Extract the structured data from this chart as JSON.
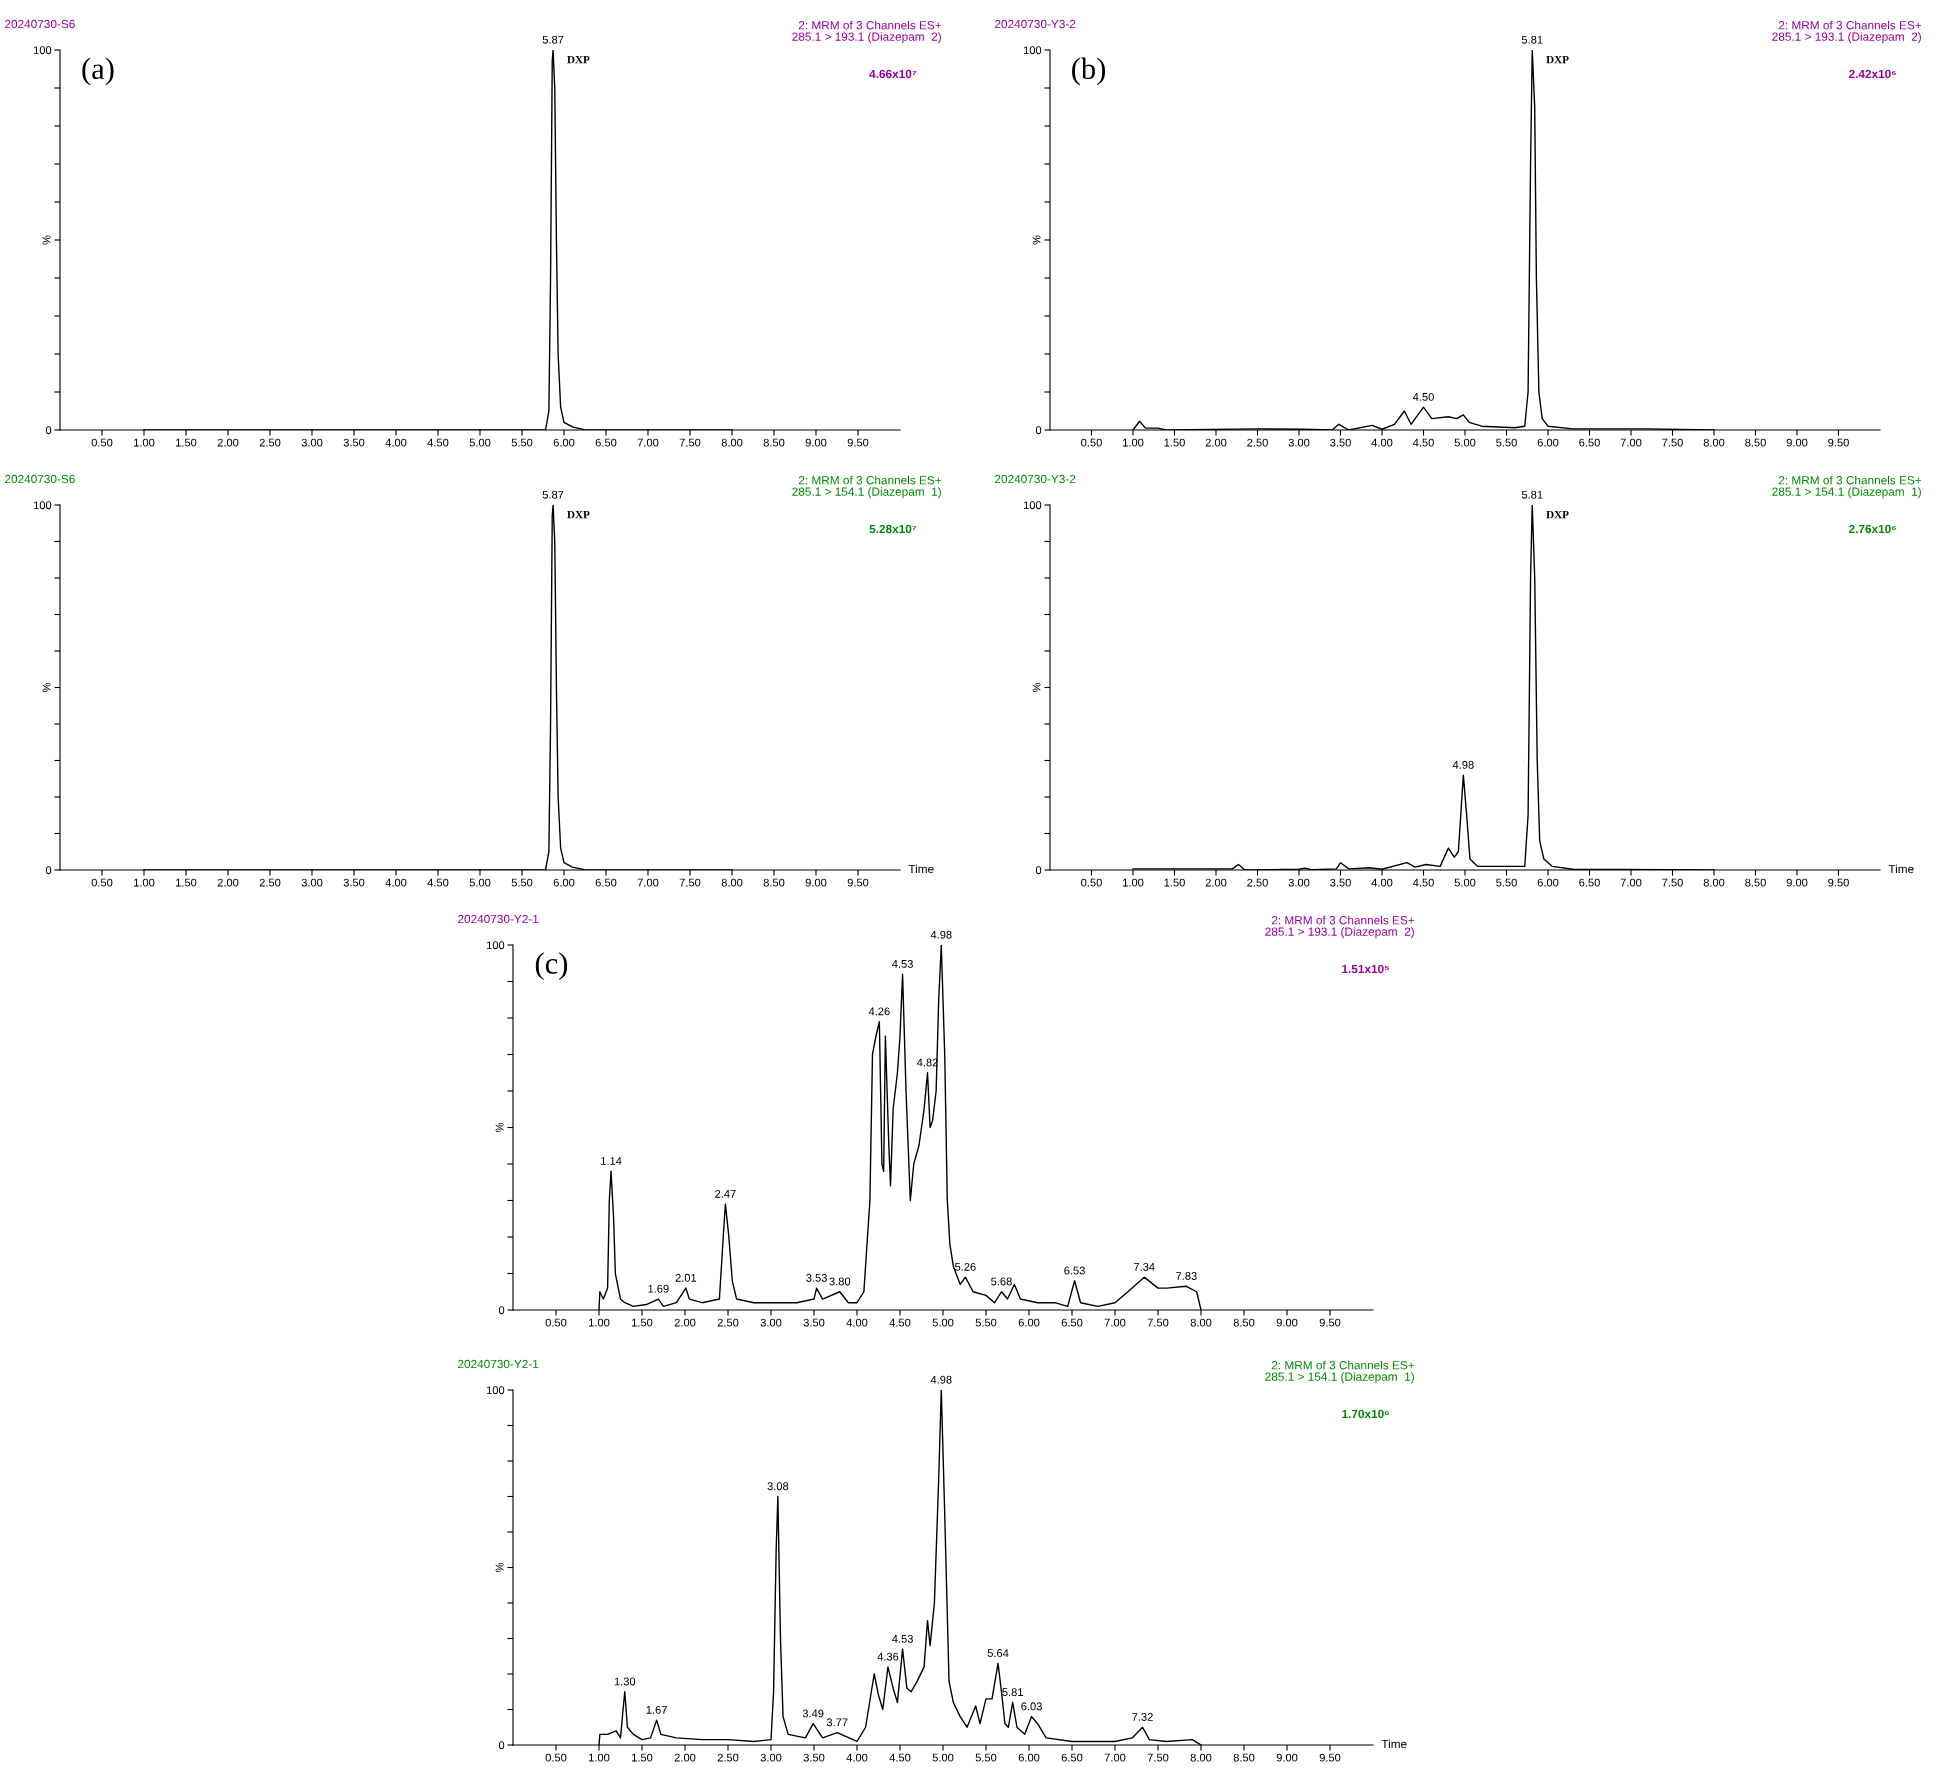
{
  "chart_data": [
    {
      "type": "line",
      "title": "20240730-S6",
      "subtitle": "2: MRM of 3 Channels ES+\n285.1 > 193.1 (Diazepam  2)",
      "x": [
        1.0,
        5.78,
        5.82,
        5.84,
        5.86,
        5.87,
        5.89,
        5.91,
        5.93,
        5.96,
        6.0,
        6.1,
        6.2,
        6.25,
        8.0
      ],
      "values": [
        0,
        0,
        5,
        40,
        97,
        100,
        90,
        50,
        20,
        6,
        2,
        0.8,
        0.3,
        0,
        0
      ],
      "color": "#000000",
      "xlim": [
        0,
        10
      ],
      "ylim": [
        0,
        100
      ],
      "xticks": [
        {
          "value": 0.5,
          "label": "0.50"
        },
        {
          "value": 1.0,
          "label": "1.00"
        },
        {
          "value": 1.5,
          "label": "1.50"
        },
        {
          "value": 2.0,
          "label": "2.00"
        },
        {
          "value": 2.5,
          "label": "2.50"
        },
        {
          "value": 3.0,
          "label": "3.00"
        },
        {
          "value": 3.5,
          "label": "3.50"
        },
        {
          "value": 4.0,
          "label": "4.00"
        },
        {
          "value": 4.5,
          "label": "4.50"
        },
        {
          "value": 5.0,
          "label": "5.00"
        },
        {
          "value": 5.5,
          "label": "5.50"
        },
        {
          "value": 6.0,
          "label": "6.00"
        },
        {
          "value": 6.5,
          "label": "6.50"
        },
        {
          "value": 7.0,
          "label": "7.00"
        },
        {
          "value": 7.5,
          "label": "7.50"
        },
        {
          "value": 8.0,
          "label": "8.00"
        },
        {
          "value": 8.5,
          "label": "8.50"
        },
        {
          "value": 9.0,
          "label": "9.00"
        },
        {
          "value": 9.5,
          "label": "9.50"
        }
      ],
      "yticks": [
        0,
        {
          "value": 10,
          "label": null
        },
        {
          "value": 20,
          "label": null
        },
        {
          "value": 30,
          "label": null
        },
        {
          "value": 40,
          "label": null
        },
        {
          "value": 50,
          "label": null
        },
        {
          "value": 60,
          "label": null
        },
        {
          "value": 70,
          "label": null
        },
        {
          "value": 80,
          "label": null
        },
        {
          "value": 90,
          "label": null
        },
        100
      ],
      "ylabel": "%",
      "annotations": [
        "4.66x10⁷",
        "(a)",
        {
          "text": "5.87",
          "x": 5.87,
          "y": 100
        },
        {
          "text": "DXP",
          "x": 5.87,
          "y": 100
        }
      ]
    },
    {
      "type": "line",
      "title": "20240730-Y3-2",
      "subtitle": "2: MRM of 3 Channels ES+\n285.1 > 193.1 (Diazepam  2)",
      "x": [
        1.0,
        1.08,
        1.15,
        1.3,
        1.4,
        2.5,
        3.05,
        3.4,
        3.48,
        3.6,
        3.88,
        4.0,
        4.15,
        4.27,
        4.35,
        4.5,
        4.6,
        4.8,
        4.9,
        4.98,
        5.05,
        5.2,
        5.6,
        5.72,
        5.76,
        5.79,
        5.81,
        5.84,
        5.86,
        5.89,
        5.93,
        6.0,
        6.3,
        7.2,
        8.0
      ],
      "values": [
        0,
        2.3,
        0.5,
        0.5,
        0,
        0.3,
        0.2,
        0,
        1.5,
        0,
        1.2,
        0.2,
        1.5,
        5,
        1.5,
        6,
        3,
        3.5,
        3,
        4,
        2,
        1,
        0.6,
        1,
        10,
        70,
        100,
        85,
        40,
        10,
        3,
        1,
        0.3,
        0.3,
        0
      ],
      "color": "#000000",
      "xlim": [
        0,
        10
      ],
      "ylim": [
        0,
        100
      ],
      "xticks": [
        {
          "value": 0.5,
          "label": "0.50"
        },
        {
          "value": 1.0,
          "label": "1.00"
        },
        {
          "value": 1.5,
          "label": "1.50"
        },
        {
          "value": 2.0,
          "label": "2.00"
        },
        {
          "value": 2.5,
          "label": "2.50"
        },
        {
          "value": 3.0,
          "label": "3.00"
        },
        {
          "value": 3.5,
          "label": "3.50"
        },
        {
          "value": 4.0,
          "label": "4.00"
        },
        {
          "value": 4.5,
          "label": "4.50"
        },
        {
          "value": 5.0,
          "label": "5.00"
        },
        {
          "value": 5.5,
          "label": "5.50"
        },
        {
          "value": 6.0,
          "label": "6.00"
        },
        {
          "value": 6.5,
          "label": "6.50"
        },
        {
          "value": 7.0,
          "label": "7.00"
        },
        {
          "value": 7.5,
          "label": "7.50"
        },
        {
          "value": 8.0,
          "label": "8.00"
        },
        {
          "value": 8.5,
          "label": "8.50"
        },
        {
          "value": 9.0,
          "label": "9.00"
        },
        {
          "value": 9.5,
          "label": "9.50"
        }
      ],
      "yticks": [
        0,
        {
          "value": 10,
          "label": null
        },
        {
          "value": 20,
          "label": null
        },
        {
          "value": 30,
          "label": null
        },
        {
          "value": 40,
          "label": null
        },
        {
          "value": 50,
          "label": null
        },
        {
          "value": 60,
          "label": null
        },
        {
          "value": 70,
          "label": null
        },
        {
          "value": 80,
          "label": null
        },
        {
          "value": 90,
          "label": null
        },
        100
      ],
      "ylabel": "%",
      "annotations": [
        "2.42x10⁶",
        "(b)",
        {
          "text": "5.81",
          "x": 5.81,
          "y": 100
        },
        {
          "text": "4.50",
          "x": 4.5,
          "y": 6
        },
        {
          "text": "DXP",
          "x": 5.81,
          "y": 100
        }
      ]
    },
    {
      "type": "line",
      "title": "20240730-S6",
      "subtitle": "2: MRM of 3 Channels ES+\n285.1 > 154.1 (Diazepam  1)",
      "x": [
        1.0,
        5.78,
        5.82,
        5.84,
        5.86,
        5.87,
        5.89,
        5.91,
        5.93,
        5.96,
        6.0,
        6.1,
        6.2,
        6.25,
        8.0
      ],
      "values": [
        0,
        0,
        5,
        40,
        97,
        100,
        90,
        50,
        20,
        6,
        2,
        0.8,
        0.3,
        0,
        0
      ],
      "color": "#000000",
      "xlim": [
        0,
        10
      ],
      "ylim": [
        0,
        100
      ],
      "xlabel": "Time",
      "xticks": [
        {
          "value": 0.5,
          "label": "0.50"
        },
        {
          "value": 1.0,
          "label": "1.00"
        },
        {
          "value": 1.5,
          "label": "1.50"
        },
        {
          "value": 2.0,
          "label": "2.00"
        },
        {
          "value": 2.5,
          "label": "2.50"
        },
        {
          "value": 3.0,
          "label": "3.00"
        },
        {
          "value": 3.5,
          "label": "3.50"
        },
        {
          "value": 4.0,
          "label": "4.00"
        },
        {
          "value": 4.5,
          "label": "4.50"
        },
        {
          "value": 5.0,
          "label": "5.00"
        },
        {
          "value": 5.5,
          "label": "5.50"
        },
        {
          "value": 6.0,
          "label": "6.00"
        },
        {
          "value": 6.5,
          "label": "6.50"
        },
        {
          "value": 7.0,
          "label": "7.00"
        },
        {
          "value": 7.5,
          "label": "7.50"
        },
        {
          "value": 8.0,
          "label": "8.00"
        },
        {
          "value": 8.5,
          "label": "8.50"
        },
        {
          "value": 9.0,
          "label": "9.00"
        },
        {
          "value": 9.5,
          "label": "9.50"
        }
      ],
      "yticks": [
        0,
        {
          "value": 10,
          "label": null
        },
        {
          "value": 20,
          "label": null
        },
        {
          "value": 30,
          "label": null
        },
        {
          "value": 40,
          "label": null
        },
        {
          "value": 50,
          "label": null
        },
        {
          "value": 60,
          "label": null
        },
        {
          "value": 70,
          "label": null
        },
        {
          "value": 80,
          "label": null
        },
        {
          "value": 90,
          "label": null
        },
        100
      ],
      "ylabel": "%",
      "annotations": [
        "5.28x10⁷",
        {
          "text": "5.87",
          "x": 5.87,
          "y": 100
        },
        {
          "text": "DXP",
          "x": 5.87,
          "y": 100
        }
      ]
    },
    {
      "type": "line",
      "title": "20240730-Y3-2",
      "subtitle": "2: MRM of 3 Channels ES+\n285.1 > 154.1 (Diazepam  1)",
      "x": [
        1.0,
        2.2,
        2.27,
        2.35,
        3.0,
        3.07,
        3.15,
        3.45,
        3.5,
        3.6,
        3.85,
        4.0,
        4.3,
        4.4,
        4.53,
        4.7,
        4.8,
        4.87,
        4.92,
        4.98,
        5.02,
        5.06,
        5.15,
        5.5,
        5.72,
        5.76,
        5.79,
        5.81,
        5.84,
        5.87,
        5.9,
        5.95,
        6.05,
        6.3,
        8.0
      ],
      "values": [
        0.3,
        0.3,
        1.5,
        0,
        0.2,
        0.5,
        0.1,
        0.3,
        2,
        0.3,
        0.6,
        0.2,
        2,
        0.8,
        1.5,
        1,
        6,
        3.5,
        5,
        26,
        15,
        3,
        1,
        1,
        1,
        15,
        80,
        100,
        80,
        30,
        8,
        3,
        1,
        0.2,
        0
      ],
      "color": "#000000",
      "xlim": [
        0,
        10
      ],
      "ylim": [
        0,
        100
      ],
      "xlabel": "Time",
      "xticks": [
        {
          "value": 0.5,
          "label": "0.50"
        },
        {
          "value": 1.0,
          "label": "1.00"
        },
        {
          "value": 1.5,
          "label": "1.50"
        },
        {
          "value": 2.0,
          "label": "2.00"
        },
        {
          "value": 2.5,
          "label": "2.50"
        },
        {
          "value": 3.0,
          "label": "3.00"
        },
        {
          "value": 3.5,
          "label": "3.50"
        },
        {
          "value": 4.0,
          "label": "4.00"
        },
        {
          "value": 4.5,
          "label": "4.50"
        },
        {
          "value": 5.0,
          "label": "5.00"
        },
        {
          "value": 5.5,
          "label": "5.50"
        },
        {
          "value": 6.0,
          "label": "6.00"
        },
        {
          "value": 6.5,
          "label": "6.50"
        },
        {
          "value": 7.0,
          "label": "7.00"
        },
        {
          "value": 7.5,
          "label": "7.50"
        },
        {
          "value": 8.0,
          "label": "8.00"
        },
        {
          "value": 8.5,
          "label": "8.50"
        },
        {
          "value": 9.0,
          "label": "9.00"
        },
        {
          "value": 9.5,
          "label": "9.50"
        }
      ],
      "yticks": [
        0,
        {
          "value": 10,
          "label": null
        },
        {
          "value": 20,
          "label": null
        },
        {
          "value": 30,
          "label": null
        },
        {
          "value": 40,
          "label": null
        },
        {
          "value": 50,
          "label": null
        },
        {
          "value": 60,
          "label": null
        },
        {
          "value": 70,
          "label": null
        },
        {
          "value": 80,
          "label": null
        },
        {
          "value": 90,
          "label": null
        },
        100
      ],
      "ylabel": "%",
      "annotations": [
        "2.76x10⁶",
        {
          "text": "5.81",
          "x": 5.81,
          "y": 100
        },
        {
          "text": "4.98",
          "x": 4.98,
          "y": 26
        },
        {
          "text": "DXP",
          "x": 5.81,
          "y": 100
        }
      ]
    },
    {
      "type": "line",
      "title": "20240730-Y2-1",
      "subtitle": "2: MRM of 3 Channels ES+\n285.1 > 193.1 (Diazepam  2)",
      "x": [
        1.0,
        1.01,
        1.05,
        1.1,
        1.12,
        1.14,
        1.17,
        1.19,
        1.25,
        1.3,
        1.4,
        1.55,
        1.69,
        1.75,
        1.9,
        2.01,
        2.05,
        2.2,
        2.4,
        2.45,
        2.47,
        2.51,
        2.55,
        2.6,
        2.8,
        3.0,
        3.3,
        3.5,
        3.53,
        3.6,
        3.8,
        3.9,
        4.0,
        4.08,
        4.15,
        4.18,
        4.22,
        4.26,
        4.29,
        4.31,
        4.33,
        4.37,
        4.39,
        4.42,
        4.47,
        4.5,
        4.53,
        4.57,
        4.62,
        4.66,
        4.72,
        4.78,
        4.82,
        4.85,
        4.88,
        4.92,
        4.95,
        4.98,
        5.02,
        5.05,
        5.08,
        5.12,
        5.2,
        5.26,
        5.35,
        5.5,
        5.6,
        5.68,
        5.75,
        5.83,
        5.9,
        6.1,
        6.3,
        6.45,
        6.53,
        6.6,
        6.8,
        7.0,
        7.15,
        7.34,
        7.5,
        7.6,
        7.83,
        7.95,
        8.0
      ],
      "values": [
        0,
        5,
        3,
        6,
        30,
        38,
        25,
        10,
        3,
        2,
        1,
        1.5,
        3,
        1,
        2,
        6,
        3,
        2,
        3,
        22,
        29,
        20,
        8,
        3,
        2,
        2,
        2,
        3,
        6,
        3,
        5,
        2,
        2,
        5,
        30,
        70,
        75,
        79,
        40,
        38,
        75,
        45,
        34,
        55,
        65,
        75,
        92,
        60,
        30,
        40,
        45,
        55,
        65,
        50,
        52,
        60,
        85,
        100,
        70,
        30,
        18,
        12,
        7,
        9,
        5,
        4,
        2,
        5,
        3,
        7,
        3,
        2,
        2,
        1,
        8,
        2,
        1,
        2,
        5,
        9,
        6,
        6,
        6.5,
        5,
        0
      ],
      "color": "#000000",
      "xlim": [
        0,
        10
      ],
      "ylim": [
        0,
        100
      ],
      "xticks": [
        {
          "value": 0.5,
          "label": "0.50"
        },
        {
          "value": 1.0,
          "label": "1.00"
        },
        {
          "value": 1.5,
          "label": "1.50"
        },
        {
          "value": 2.0,
          "label": "2.00"
        },
        {
          "value": 2.5,
          "label": "2.50"
        },
        {
          "value": 3.0,
          "label": "3.00"
        },
        {
          "value": 3.5,
          "label": "3.50"
        },
        {
          "value": 4.0,
          "label": "4.00"
        },
        {
          "value": 4.5,
          "label": "4.50"
        },
        {
          "value": 5.0,
          "label": "5.00"
        },
        {
          "value": 5.5,
          "label": "5.50"
        },
        {
          "value": 6.0,
          "label": "6.00"
        },
        {
          "value": 6.5,
          "label": "6.50"
        },
        {
          "value": 7.0,
          "label": "7.00"
        },
        {
          "value": 7.5,
          "label": "7.50"
        },
        {
          "value": 8.0,
          "label": "8.00"
        },
        {
          "value": 8.5,
          "label": "8.50"
        },
        {
          "value": 9.0,
          "label": "9.00"
        },
        {
          "value": 9.5,
          "label": "9.50"
        }
      ],
      "yticks": [
        0,
        {
          "value": 10,
          "label": null
        },
        {
          "value": 20,
          "label": null
        },
        {
          "value": 30,
          "label": null
        },
        {
          "value": 40,
          "label": null
        },
        {
          "value": 50,
          "label": null
        },
        {
          "value": 60,
          "label": null
        },
        {
          "value": 70,
          "label": null
        },
        {
          "value": 80,
          "label": null
        },
        {
          "value": 90,
          "label": null
        },
        100
      ],
      "ylabel": "%",
      "annotations": [
        "1.51x10⁵",
        "(c)",
        {
          "text": "1.14",
          "x": 1.14,
          "y": 38
        },
        {
          "text": "1.69",
          "x": 1.69,
          "y": 3
        },
        {
          "text": "2.01",
          "x": 2.01,
          "y": 6
        },
        {
          "text": "2.47",
          "x": 2.47,
          "y": 29
        },
        {
          "text": "3.53",
          "x": 3.53,
          "y": 6
        },
        {
          "text": "3.80",
          "x": 3.8,
          "y": 5
        },
        {
          "text": "4.26",
          "x": 4.26,
          "y": 79
        },
        {
          "text": "4.53",
          "x": 4.53,
          "y": 92
        },
        {
          "text": "4.82",
          "x": 4.82,
          "y": 65
        },
        {
          "text": "4.98",
          "x": 4.98,
          "y": 100
        },
        {
          "text": "5.26",
          "x": 5.26,
          "y": 9
        },
        {
          "text": "5.68",
          "x": 5.68,
          "y": 5
        },
        {
          "text": "6.53",
          "x": 6.53,
          "y": 8
        },
        {
          "text": "7.34",
          "x": 7.34,
          "y": 9
        },
        {
          "text": "7.83",
          "x": 7.83,
          "y": 6.5
        }
      ]
    },
    {
      "type": "line",
      "title": "20240730-Y2-1",
      "subtitle": "2: MRM of 3 Channels ES+\n285.1 > 154.1 (Diazepam  1)",
      "x": [
        1.0,
        1.01,
        1.1,
        1.2,
        1.25,
        1.28,
        1.3,
        1.33,
        1.4,
        1.5,
        1.6,
        1.67,
        1.72,
        1.9,
        2.2,
        2.5,
        2.8,
        3.0,
        3.03,
        3.06,
        3.08,
        3.11,
        3.14,
        3.2,
        3.4,
        3.49,
        3.6,
        3.77,
        4.0,
        4.1,
        4.2,
        4.25,
        4.3,
        4.36,
        4.42,
        4.47,
        4.53,
        4.58,
        4.63,
        4.7,
        4.78,
        4.82,
        4.85,
        4.9,
        4.95,
        4.98,
        5.02,
        5.07,
        5.12,
        5.2,
        5.28,
        5.38,
        5.43,
        5.5,
        5.57,
        5.64,
        5.68,
        5.72,
        5.76,
        5.81,
        5.86,
        5.95,
        6.03,
        6.1,
        6.2,
        6.5,
        7.0,
        7.2,
        7.32,
        7.4,
        7.6,
        7.9,
        8.0
      ],
      "values": [
        0,
        3,
        3,
        4,
        2,
        10,
        15,
        5,
        3,
        1.5,
        2,
        7,
        3,
        2,
        1.5,
        1.5,
        1,
        1.5,
        15,
        55,
        70,
        30,
        8,
        3,
        2,
        6,
        2,
        3.5,
        1,
        5,
        20,
        14,
        10,
        22,
        16,
        12,
        27,
        16,
        15,
        18,
        22,
        35,
        28,
        40,
        75,
        100,
        65,
        18,
        12,
        8,
        5,
        11,
        6,
        13,
        13,
        23,
        15,
        6,
        5,
        12,
        5,
        3,
        8,
        6,
        2,
        1,
        1,
        2,
        5,
        1.5,
        1,
        1.5,
        0
      ],
      "color": "#000000",
      "xlim": [
        0,
        10
      ],
      "ylim": [
        0,
        100
      ],
      "xlabel": "Time",
      "xticks": [
        {
          "value": 0.5,
          "label": "0.50"
        },
        {
          "value": 1.0,
          "label": "1.00"
        },
        {
          "value": 1.5,
          "label": "1.50"
        },
        {
          "value": 2.0,
          "label": "2.00"
        },
        {
          "value": 2.5,
          "label": "2.50"
        },
        {
          "value": 3.0,
          "label": "3.00"
        },
        {
          "value": 3.5,
          "label": "3.50"
        },
        {
          "value": 4.0,
          "label": "4.00"
        },
        {
          "value": 4.5,
          "label": "4.50"
        },
        {
          "value": 5.0,
          "label": "5.00"
        },
        {
          "value": 5.5,
          "label": "5.50"
        },
        {
          "value": 6.0,
          "label": "6.00"
        },
        {
          "value": 6.5,
          "label": "6.50"
        },
        {
          "value": 7.0,
          "label": "7.00"
        },
        {
          "value": 7.5,
          "label": "7.50"
        },
        {
          "value": 8.0,
          "label": "8.00"
        },
        {
          "value": 8.5,
          "label": "8.50"
        },
        {
          "value": 9.0,
          "label": "9.00"
        },
        {
          "value": 9.5,
          "label": "9.50"
        }
      ],
      "yticks": [
        0,
        {
          "value": 10,
          "label": null
        },
        {
          "value": 20,
          "label": null
        },
        {
          "value": 30,
          "label": null
        },
        {
          "value": 40,
          "label": null
        },
        {
          "value": 50,
          "label": null
        },
        {
          "value": 60,
          "label": null
        },
        {
          "value": 70,
          "label": null
        },
        {
          "value": 80,
          "label": null
        },
        {
          "value": 90,
          "label": null
        },
        100
      ],
      "ylabel": "%",
      "annotations": [
        "1.70x10⁶",
        {
          "text": "1.30",
          "x": 1.3,
          "y": 15
        },
        {
          "text": "1.67",
          "x": 1.67,
          "y": 7
        },
        {
          "text": "3.08",
          "x": 3.08,
          "y": 70
        },
        {
          "text": "3.49",
          "x": 3.49,
          "y": 6
        },
        {
          "text": "3.77",
          "x": 3.77,
          "y": 3.5
        },
        {
          "text": "4.36",
          "x": 4.36,
          "y": 22
        },
        {
          "text": "4.53",
          "x": 4.53,
          "y": 27
        },
        {
          "text": "4.98",
          "x": 4.98,
          "y": 100
        },
        {
          "text": "5.64",
          "x": 5.64,
          "y": 23
        },
        {
          "text": "5.81",
          "x": 5.81,
          "y": 12
        },
        {
          "text": "6.03",
          "x": 6.03,
          "y": 8
        },
        {
          "text": "7.32",
          "x": 7.32,
          "y": 5
        }
      ]
    }
  ]
}
